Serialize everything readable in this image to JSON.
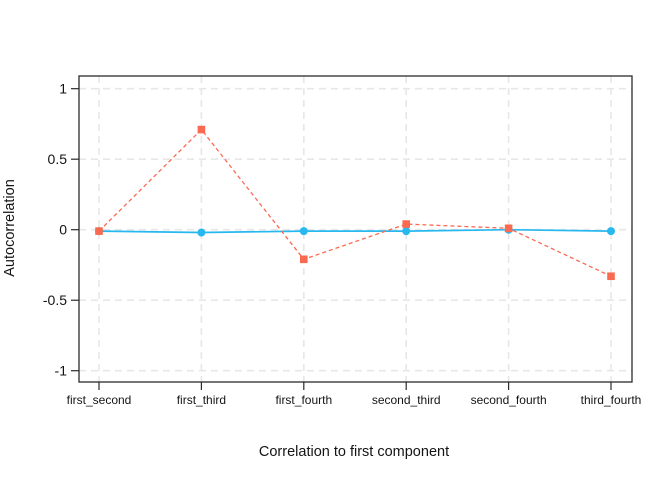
{
  "figure": {
    "background": "#ffffff"
  },
  "chart_data": {
    "type": "line",
    "title": "",
    "xlabel": "Correlation to first component",
    "ylabel": "Autocorrelation",
    "categories": [
      "first_second",
      "first_third",
      "first_fourth",
      "second_third",
      "second_fourth",
      "third_fourth"
    ],
    "series": [
      {
        "name": "blue_solid_circles",
        "marker": "circle",
        "line_style": "solid",
        "color": "#27B8EF",
        "values": [
          -0.01,
          -0.02,
          -0.01,
          -0.01,
          0.0,
          -0.01
        ]
      },
      {
        "name": "red_dashed_squares",
        "marker": "square",
        "line_style": "dashed",
        "color": "#FA6A50",
        "values": [
          -0.01,
          0.71,
          -0.21,
          0.04,
          0.01,
          -0.33
        ]
      }
    ],
    "y_ticks": [
      1,
      0.5,
      0,
      -0.5,
      -1
    ],
    "y_tick_labels": [
      "1",
      "0.5",
      "0",
      "-0.5",
      "-1"
    ],
    "ylim": [
      -1.08,
      1.09
    ],
    "grid": true,
    "legend_position": "none"
  },
  "colors": {
    "grid": "#e7e7e7",
    "axis": "#2b2b2b",
    "text": "#141414"
  }
}
